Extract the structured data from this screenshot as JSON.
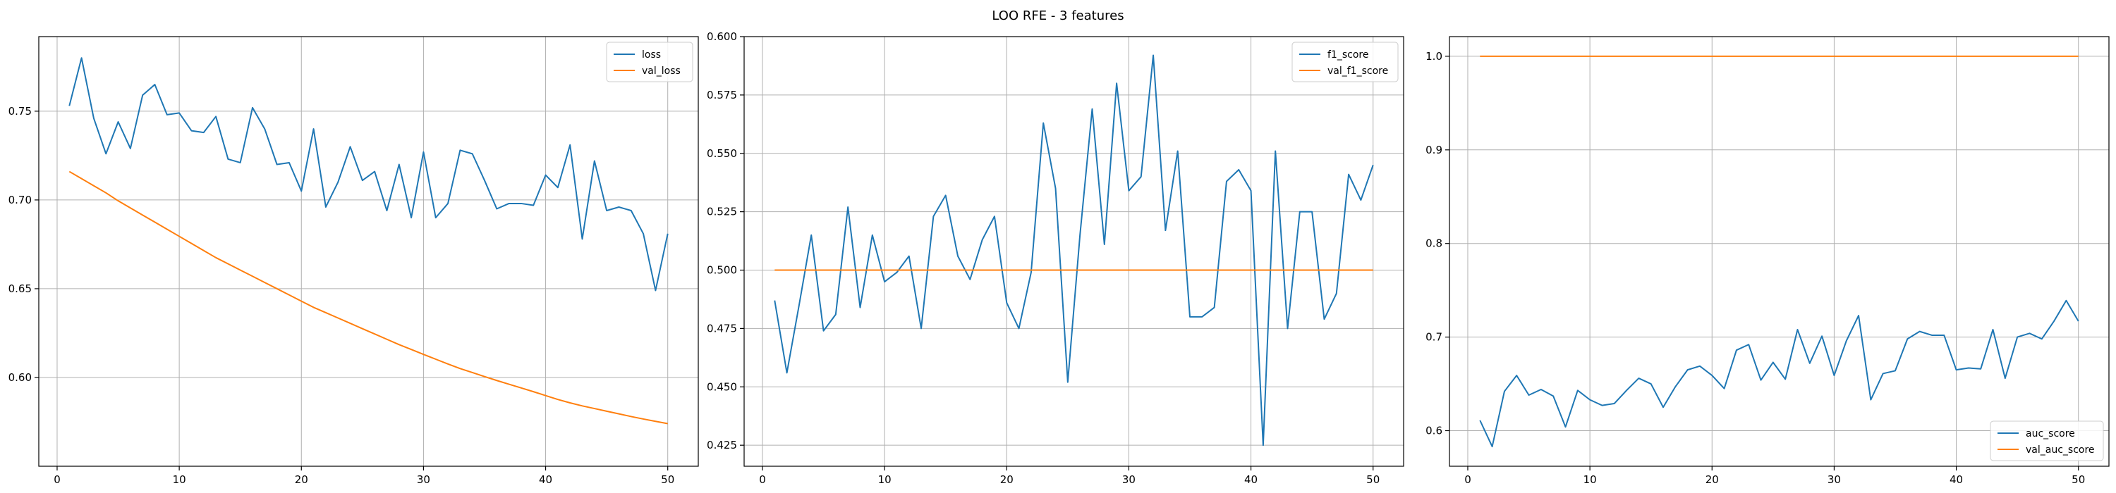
{
  "figure": {
    "title": "LOO RFE - 3 features"
  },
  "colors": {
    "blue": "#1f77b4",
    "orange": "#ff7f0e",
    "grid": "#b0b0b0",
    "axis": "#000000"
  },
  "chart_data": [
    {
      "type": "line",
      "title": "",
      "xlabel": "",
      "ylabel": "",
      "xlim": [
        -1.5,
        52.5
      ],
      "ylim": [
        0.55,
        0.792
      ],
      "xticks": [
        0,
        10,
        20,
        30,
        40,
        50
      ],
      "yticks": [
        0.6,
        0.65,
        0.7,
        0.75
      ],
      "ytick_labels": [
        "0.60",
        "0.65",
        "0.70",
        "0.75"
      ],
      "grid": true,
      "legend_position": "upper right",
      "x": [
        1,
        2,
        3,
        4,
        5,
        6,
        7,
        8,
        9,
        10,
        11,
        12,
        13,
        14,
        15,
        16,
        17,
        18,
        19,
        20,
        21,
        22,
        23,
        24,
        25,
        26,
        27,
        28,
        29,
        30,
        31,
        32,
        33,
        34,
        35,
        36,
        37,
        38,
        39,
        40,
        41,
        42,
        43,
        44,
        45,
        46,
        47,
        48,
        49,
        50
      ],
      "series": [
        {
          "name": "loss",
          "color": "#1f77b4",
          "values": [
            0.753,
            0.78,
            0.746,
            0.726,
            0.744,
            0.729,
            0.759,
            0.765,
            0.748,
            0.749,
            0.739,
            0.738,
            0.747,
            0.723,
            0.721,
            0.752,
            0.74,
            0.72,
            0.721,
            0.705,
            0.74,
            0.696,
            0.71,
            0.73,
            0.711,
            0.716,
            0.694,
            0.72,
            0.69,
            0.727,
            0.69,
            0.698,
            0.728,
            0.726,
            0.711,
            0.695,
            0.698,
            0.698,
            0.697,
            0.714,
            0.707,
            0.731,
            0.678,
            0.722,
            0.694,
            0.696,
            0.694,
            0.681,
            0.649,
            0.681
          ]
        },
        {
          "name": "val_loss",
          "color": "#ff7f0e",
          "values": [
            0.716,
            0.712,
            0.708,
            0.704,
            0.6995,
            0.6955,
            0.6915,
            0.6875,
            0.6835,
            0.6795,
            0.6755,
            0.6715,
            0.6675,
            0.664,
            0.6605,
            0.657,
            0.6535,
            0.65,
            0.6465,
            0.643,
            0.6395,
            0.6365,
            0.6335,
            0.6305,
            0.6275,
            0.6245,
            0.6215,
            0.6185,
            0.6158,
            0.613,
            0.6103,
            0.6076,
            0.605,
            0.6028,
            0.6005,
            0.5983,
            0.5962,
            0.5941,
            0.592,
            0.5898,
            0.5876,
            0.5857,
            0.584,
            0.5825,
            0.581,
            0.5795,
            0.578,
            0.5766,
            0.5753,
            0.574
          ]
        }
      ]
    },
    {
      "type": "line",
      "title": "",
      "xlabel": "",
      "ylabel": "",
      "xlim": [
        -1.5,
        52.5
      ],
      "ylim": [
        0.416,
        0.6
      ],
      "xticks": [
        0,
        10,
        20,
        30,
        40,
        50
      ],
      "yticks": [
        0.425,
        0.45,
        0.475,
        0.5,
        0.525,
        0.55,
        0.575,
        0.6
      ],
      "ytick_labels": [
        "0.425",
        "0.450",
        "0.475",
        "0.500",
        "0.525",
        "0.550",
        "0.575",
        "0.600"
      ],
      "grid": true,
      "legend_position": "upper right",
      "x": [
        1,
        2,
        3,
        4,
        5,
        6,
        7,
        8,
        9,
        10,
        11,
        12,
        13,
        14,
        15,
        16,
        17,
        18,
        19,
        20,
        21,
        22,
        23,
        24,
        25,
        26,
        27,
        28,
        29,
        30,
        31,
        32,
        33,
        34,
        35,
        36,
        37,
        38,
        39,
        40,
        41,
        42,
        43,
        44,
        45,
        46,
        47,
        48,
        49,
        50
      ],
      "series": [
        {
          "name": "f1_score",
          "color": "#1f77b4",
          "values": [
            0.487,
            0.456,
            0.485,
            0.515,
            0.474,
            0.481,
            0.527,
            0.484,
            0.515,
            0.495,
            0.499,
            0.506,
            0.475,
            0.523,
            0.532,
            0.506,
            0.496,
            0.513,
            0.523,
            0.486,
            0.475,
            0.499,
            0.563,
            0.535,
            0.452,
            0.515,
            0.569,
            0.511,
            0.58,
            0.534,
            0.54,
            0.592,
            0.517,
            0.551,
            0.48,
            0.48,
            0.484,
            0.538,
            0.543,
            0.534,
            0.425,
            0.551,
            0.475,
            0.525,
            0.525,
            0.479,
            0.49,
            0.541,
            0.53,
            0.545
          ]
        },
        {
          "name": "val_f1_score",
          "color": "#ff7f0e",
          "values": [
            0.5,
            0.5,
            0.5,
            0.5,
            0.5,
            0.5,
            0.5,
            0.5,
            0.5,
            0.5,
            0.5,
            0.5,
            0.5,
            0.5,
            0.5,
            0.5,
            0.5,
            0.5,
            0.5,
            0.5,
            0.5,
            0.5,
            0.5,
            0.5,
            0.5,
            0.5,
            0.5,
            0.5,
            0.5,
            0.5,
            0.5,
            0.5,
            0.5,
            0.5,
            0.5,
            0.5,
            0.5,
            0.5,
            0.5,
            0.5,
            0.5,
            0.5,
            0.5,
            0.5,
            0.5,
            0.5,
            0.5,
            0.5,
            0.5,
            0.5
          ]
        }
      ]
    },
    {
      "type": "line",
      "title": "",
      "xlabel": "",
      "ylabel": "",
      "xlim": [
        -1.5,
        52.5
      ],
      "ylim": [
        0.562,
        1.021
      ],
      "xticks": [
        0,
        10,
        20,
        30,
        40,
        50
      ],
      "yticks": [
        0.6,
        0.7,
        0.8,
        0.9,
        1.0
      ],
      "ytick_labels": [
        "0.6",
        "0.7",
        "0.8",
        "0.9",
        "1.0"
      ],
      "grid": true,
      "legend_position": "lower right",
      "x": [
        1,
        2,
        3,
        4,
        5,
        6,
        7,
        8,
        9,
        10,
        11,
        12,
        13,
        14,
        15,
        16,
        17,
        18,
        19,
        20,
        21,
        22,
        23,
        24,
        25,
        26,
        27,
        28,
        29,
        30,
        31,
        32,
        33,
        34,
        35,
        36,
        37,
        38,
        39,
        40,
        41,
        42,
        43,
        44,
        45,
        46,
        47,
        48,
        49,
        50
      ],
      "series": [
        {
          "name": "auc_score",
          "color": "#1f77b4",
          "values": [
            0.611,
            0.583,
            0.642,
            0.659,
            0.638,
            0.644,
            0.637,
            0.604,
            0.643,
            0.633,
            0.627,
            0.629,
            0.643,
            0.656,
            0.65,
            0.625,
            0.647,
            0.665,
            0.669,
            0.659,
            0.645,
            0.686,
            0.692,
            0.654,
            0.673,
            0.655,
            0.708,
            0.672,
            0.701,
            0.659,
            0.696,
            0.723,
            0.633,
            0.661,
            0.664,
            0.698,
            0.706,
            0.702,
            0.702,
            0.665,
            0.667,
            0.666,
            0.708,
            0.656,
            0.7,
            0.704,
            0.698,
            0.717,
            0.739,
            0.717
          ]
        },
        {
          "name": "val_auc_score",
          "color": "#ff7f0e",
          "values": [
            1,
            1,
            1,
            1,
            1,
            1,
            1,
            1,
            1,
            1,
            1,
            1,
            1,
            1,
            1,
            1,
            1,
            1,
            1,
            1,
            1,
            1,
            1,
            1,
            1,
            1,
            1,
            1,
            1,
            1,
            1,
            1,
            1,
            1,
            1,
            1,
            1,
            1,
            1,
            1,
            1,
            1,
            1,
            1,
            1,
            1,
            1,
            1,
            1,
            1
          ]
        }
      ]
    }
  ]
}
